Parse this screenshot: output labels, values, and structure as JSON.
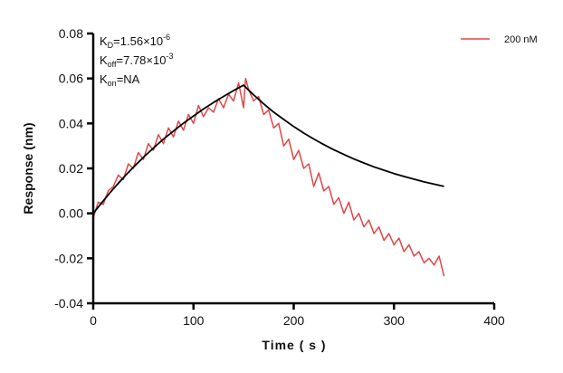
{
  "chart_data": {
    "type": "line",
    "title": "",
    "xlabel": "Time ( s )",
    "ylabel": "Response (nm)",
    "xlim": [
      0,
      400
    ],
    "ylim": [
      -0.04,
      0.08
    ],
    "xticks": [
      "0",
      "100",
      "200",
      "300",
      "400"
    ],
    "yticks": [
      "-0.04",
      "-0.02",
      "0.00",
      "0.02",
      "0.04",
      "0.06",
      "0.08"
    ],
    "grid": false,
    "legend_position": "top-right",
    "annotations": {
      "kd": {
        "base": "K",
        "sub": "D",
        "text": "=1.56×10",
        "sup": "-6"
      },
      "koff": {
        "base": "K",
        "sub": "off",
        "text": "=7.78×10",
        "sup": "-3"
      },
      "kon": {
        "base": "K",
        "sub": "on",
        "text": "=NA"
      }
    },
    "series": [
      {
        "name": "200 nM",
        "color": "#e04646",
        "x": [
          0,
          5,
          10,
          15,
          20,
          25,
          30,
          35,
          40,
          45,
          50,
          55,
          60,
          65,
          70,
          75,
          80,
          85,
          90,
          95,
          100,
          105,
          110,
          115,
          120,
          125,
          130,
          135,
          140,
          145,
          150,
          152,
          155,
          160,
          165,
          170,
          175,
          180,
          185,
          190,
          195,
          200,
          205,
          210,
          215,
          220,
          225,
          230,
          235,
          240,
          245,
          250,
          255,
          260,
          265,
          270,
          275,
          280,
          285,
          290,
          295,
          300,
          305,
          310,
          315,
          320,
          325,
          330,
          335,
          340,
          345,
          350
        ],
        "y": [
          -0.002,
          0.005,
          0.004,
          0.01,
          0.012,
          0.017,
          0.015,
          0.022,
          0.02,
          0.027,
          0.024,
          0.031,
          0.028,
          0.035,
          0.031,
          0.038,
          0.034,
          0.041,
          0.037,
          0.044,
          0.04,
          0.048,
          0.043,
          0.047,
          0.045,
          0.051,
          0.047,
          0.053,
          0.05,
          0.058,
          0.047,
          0.06,
          0.055,
          0.05,
          0.052,
          0.044,
          0.046,
          0.038,
          0.04,
          0.03,
          0.033,
          0.024,
          0.028,
          0.02,
          0.022,
          0.012,
          0.018,
          0.01,
          0.012,
          0.004,
          0.007,
          0.0,
          0.005,
          -0.003,
          0.0,
          -0.006,
          -0.003,
          -0.009,
          -0.006,
          -0.012,
          -0.009,
          -0.014,
          -0.011,
          -0.017,
          -0.014,
          -0.019,
          -0.017,
          -0.022,
          -0.02,
          -0.023,
          -0.019,
          -0.028
        ]
      },
      {
        "color": "#000000",
        "x": [
          0,
          10,
          20,
          30,
          40,
          50,
          60,
          70,
          80,
          90,
          100,
          110,
          120,
          130,
          140,
          150,
          160,
          170,
          180,
          190,
          200,
          210,
          220,
          230,
          240,
          250,
          260,
          270,
          280,
          290,
          300,
          310,
          320,
          330,
          340,
          350
        ],
        "y": [
          0,
          0.0056,
          0.0109,
          0.0158,
          0.0205,
          0.0249,
          0.029,
          0.033,
          0.0366,
          0.0401,
          0.0433,
          0.0464,
          0.0493,
          0.052,
          0.0546,
          0.057,
          0.0527,
          0.0487,
          0.045,
          0.0418,
          0.0386,
          0.0357,
          0.0331,
          0.0306,
          0.0283,
          0.0262,
          0.0242,
          0.0224,
          0.0207,
          0.0192,
          0.0177,
          0.0164,
          0.0152,
          0.014,
          0.013,
          0.012
        ]
      }
    ]
  }
}
